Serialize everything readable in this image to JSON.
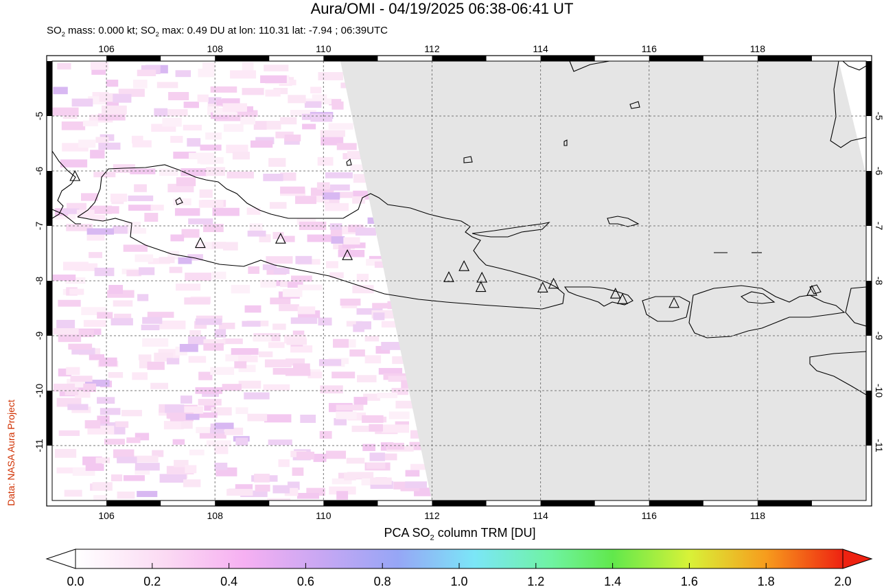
{
  "title": "Aura/OMI - 04/19/2025 06:38-06:41 UT",
  "subtitle": {
    "part1": "SO",
    "sub1": "2",
    "part2": " mass: 0.000 kt; SO",
    "sub2": "2",
    "part3": " max: 0.49 DU at lon: 110.31 lat: -7.94 ; 06:39UTC"
  },
  "credit": "Data: NASA Aura Project",
  "colorbar": {
    "title_pre": "PCA SO",
    "title_sub": "2",
    "title_post": " column TRM [DU]",
    "ticks": [
      "0.0",
      "0.2",
      "0.4",
      "0.6",
      "0.8",
      "1.0",
      "1.2",
      "1.4",
      "1.6",
      "1.8",
      "2.0"
    ],
    "range": [
      0,
      2.0
    ]
  },
  "map": {
    "lon_range": [
      105.0,
      120.0
    ],
    "lat_range": [
      -12.0,
      -4.0
    ],
    "lon_ticks": [
      "106",
      "108",
      "110",
      "112",
      "114",
      "116",
      "118"
    ],
    "lat_ticks": [
      "-5",
      "-6",
      "-7",
      "-8",
      "-9",
      "-10",
      "-11"
    ],
    "no_data_color": "#e5e5e5",
    "volcanoes": [
      {
        "lon": 105.42,
        "lat": -6.1
      },
      {
        "lon": 107.73,
        "lat": -7.32
      },
      {
        "lon": 109.21,
        "lat": -7.24
      },
      {
        "lon": 110.44,
        "lat": -7.54
      },
      {
        "lon": 112.31,
        "lat": -7.94
      },
      {
        "lon": 112.59,
        "lat": -7.74
      },
      {
        "lon": 112.92,
        "lat": -7.95
      },
      {
        "lon": 112.9,
        "lat": -8.12
      },
      {
        "lon": 114.04,
        "lat": -8.13
      },
      {
        "lon": 114.24,
        "lat": -8.06
      },
      {
        "lon": 115.38,
        "lat": -8.24
      },
      {
        "lon": 115.51,
        "lat": -8.34
      },
      {
        "lon": 116.46,
        "lat": -8.41
      },
      {
        "lon": 119.0,
        "lat": -8.19
      }
    ]
  }
}
